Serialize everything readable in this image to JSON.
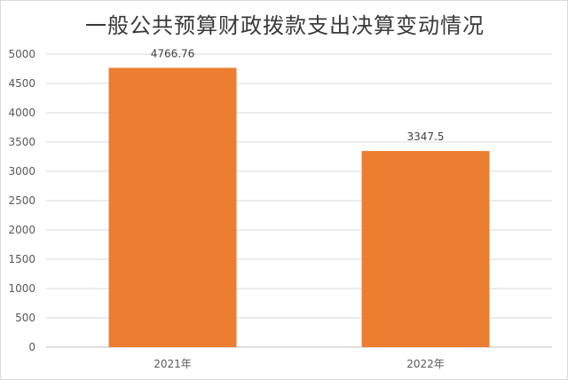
{
  "chart_data": {
    "type": "bar",
    "title": "一般公共预算财政拨款支出决算变动情况",
    "categories": [
      "2021年",
      "2022年"
    ],
    "values": [
      4766.76,
      3347.5
    ],
    "value_labels": [
      "4766.76",
      "3347.5"
    ],
    "ylim": [
      0,
      5000
    ],
    "yticks": [
      0,
      500,
      1000,
      1500,
      2000,
      2500,
      3000,
      3500,
      4000,
      4500,
      5000
    ],
    "xlabel": "",
    "ylabel": "",
    "grid": true,
    "legend": "none",
    "colors": {
      "bar": "#ED7D31",
      "grid": "#d9d9d9",
      "axis": "#bfbfbf",
      "text": "#595959"
    }
  }
}
